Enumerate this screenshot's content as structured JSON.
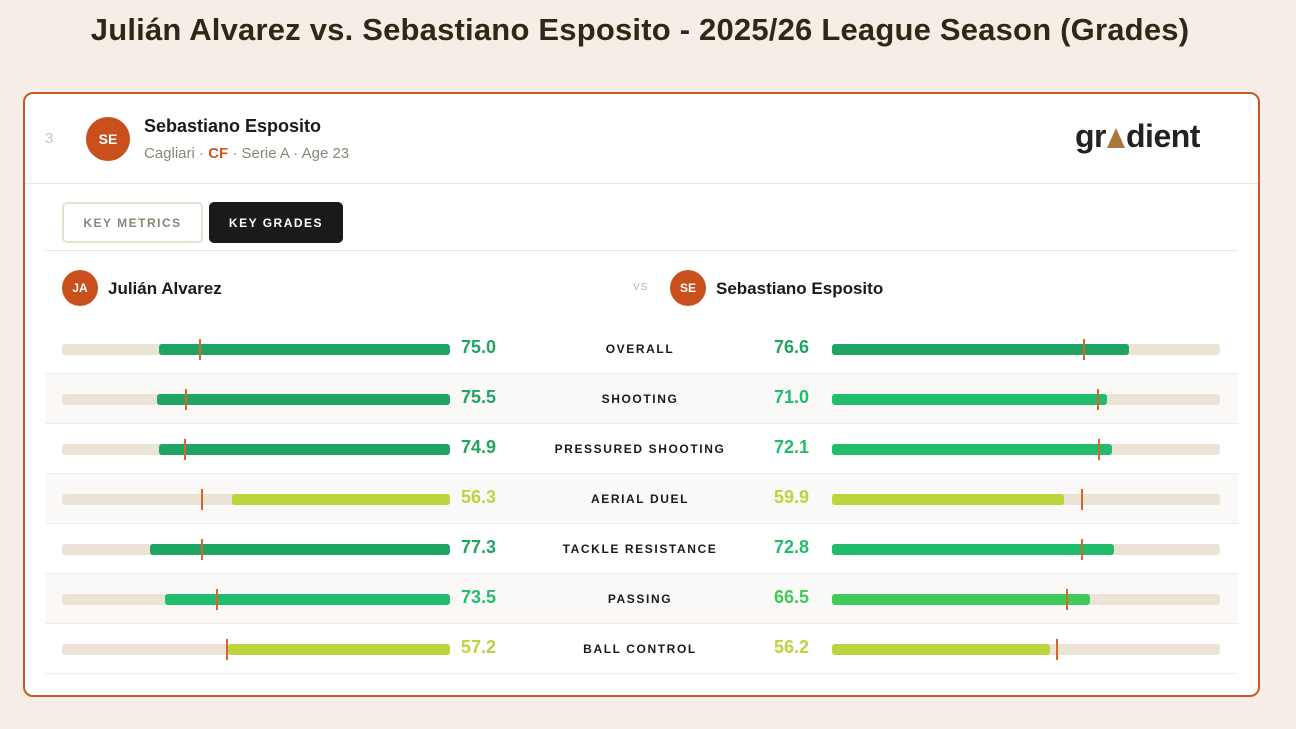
{
  "page_title": "Julián Alvarez vs. Sebastiano Esposito - 2025/26 League Season (Grades)",
  "header": {
    "rank": "3",
    "avatar": "SE",
    "name": "Sebastiano Esposito",
    "club": "Cagliari",
    "sep": "·",
    "position": "CF",
    "league": "Serie A",
    "age": "Age 23",
    "logo_pre": "gr",
    "logo_post": "dient"
  },
  "tabs": [
    {
      "label": "KEY METRICS",
      "active": false
    },
    {
      "label": "KEY GRADES",
      "active": true
    }
  ],
  "comparison": {
    "left": {
      "initials": "JA",
      "name": "Julián Alvarez"
    },
    "vs": "VS",
    "right": {
      "initials": "SE",
      "name": "Sebastiano Esposito"
    }
  },
  "scale_max": 100,
  "metrics": [
    {
      "label": "OVERALL",
      "left": {
        "value": "75.0",
        "marker": 64.6
      },
      "right": {
        "value": "76.6",
        "marker": 64.6
      }
    },
    {
      "label": "SHOOTING",
      "left": {
        "value": "75.5",
        "marker": 68.3
      },
      "right": {
        "value": "71.0",
        "marker": 68.3
      }
    },
    {
      "label": "PRESSURED SHOOTING",
      "left": {
        "value": "74.9",
        "marker": 68.6
      },
      "right": {
        "value": "72.1",
        "marker": 68.6
      }
    },
    {
      "label": "AERIAL DUEL",
      "left": {
        "value": "56.3",
        "marker": 64.1
      },
      "right": {
        "value": "59.9",
        "marker": 64.1
      }
    },
    {
      "label": "TACKLE RESISTANCE",
      "left": {
        "value": "77.3",
        "marker": 64.1
      },
      "right": {
        "value": "72.8",
        "marker": 64.1
      }
    },
    {
      "label": "PASSING",
      "left": {
        "value": "73.5",
        "marker": 60.3
      },
      "right": {
        "value": "66.5",
        "marker": 60.3
      }
    },
    {
      "label": "BALL CONTROL",
      "left": {
        "value": "57.2",
        "marker": 57.8
      },
      "right": {
        "value": "56.2",
        "marker": 57.8
      }
    }
  ],
  "colors": {
    "accent": "#c9501c",
    "grade_high": "#1fa463",
    "grade_good": "#22bd6c",
    "grade_mid": "#3fca5a",
    "grade_low": "#bcd43e",
    "marker": "#d9652e"
  }
}
